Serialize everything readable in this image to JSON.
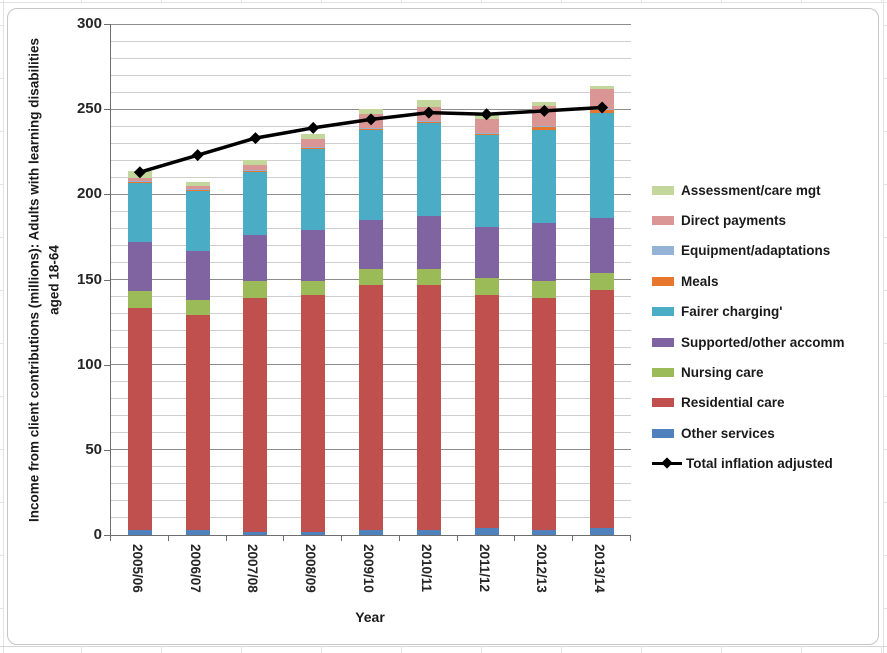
{
  "chart_data": {
    "type": "stacked-bar-with-line",
    "title": "",
    "ylabel": "Income from client contributions  (millions): Adults with learning disabilities aged 18-64",
    "xlabel": "Year",
    "ylim": [
      0,
      300
    ],
    "y_major_step": 50,
    "y_minor_step": 10,
    "grid": "horizontal-minor-and-major",
    "legend_position": "right",
    "categories": [
      "2005/06",
      "2006/07",
      "2007/08",
      "2008/09",
      "2009/10",
      "2010/11",
      "2011/12",
      "2012/13",
      "2013/14"
    ],
    "series": [
      {
        "name": "Other services",
        "color": "#4F81BD",
        "values": [
          3,
          3,
          2,
          2,
          3,
          3,
          4,
          3,
          4
        ]
      },
      {
        "name": "Residential care",
        "color": "#C0504D",
        "values": [
          130,
          126,
          137,
          139,
          144,
          144,
          137,
          136,
          140
        ]
      },
      {
        "name": "Nursing care",
        "color": "#9BBB59",
        "values": [
          10,
          9,
          10,
          8,
          9,
          9,
          10,
          10,
          10
        ]
      },
      {
        "name": "Supported/other accomm",
        "color": "#8064A2",
        "values": [
          29,
          29,
          27,
          30,
          29,
          31,
          30,
          34,
          32
        ]
      },
      {
        "name": "Fairer charging'",
        "color": "#4BACC6",
        "values": [
          35,
          35,
          37,
          48,
          53,
          55,
          54,
          55,
          62
        ]
      },
      {
        "name": "Meals",
        "color": "#E8772E",
        "values": [
          0.5,
          0.5,
          1,
          0.5,
          0.5,
          0.5,
          0.5,
          1.5,
          1.5
        ]
      },
      {
        "name": "Equipment/adaptations",
        "color": "#95B3D7",
        "values": [
          0.5,
          0.5,
          0.5,
          0.5,
          0.5,
          0.5,
          0.5,
          0.5,
          0.5
        ]
      },
      {
        "name": "Direct payments",
        "color": "#D99694",
        "values": [
          1.5,
          2,
          3,
          4.5,
          8,
          8.5,
          8.5,
          12,
          12
        ]
      },
      {
        "name": "Assessment/care mgt",
        "color": "#C3D69B",
        "values": [
          4.5,
          2.5,
          2.5,
          3,
          3,
          4,
          2.5,
          2.5,
          1.5
        ]
      }
    ],
    "line_series": {
      "name": "Total inflation adjusted",
      "color": "#000000",
      "marker": "diamond",
      "values": [
        213,
        223,
        233,
        239,
        244,
        248,
        247,
        249,
        251
      ]
    },
    "y_tick_labels": [
      "0",
      "50",
      "100",
      "150",
      "200",
      "250",
      "300"
    ]
  }
}
